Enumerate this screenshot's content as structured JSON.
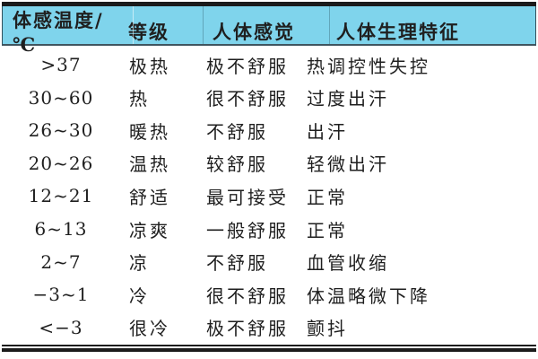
{
  "table": {
    "title_semantic": "apparent-temperature-grade-table",
    "colors": {
      "header_bg": "#7fd4ec",
      "rule": "#1b1b1b",
      "header_underline": "#40555f",
      "text": "#1f1f1f"
    },
    "columns": [
      {
        "label": "体感温度/℃"
      },
      {
        "label": "等级"
      },
      {
        "label": "人体感觉"
      },
      {
        "label": "人体生理特征"
      }
    ],
    "rows": [
      {
        "temp": ">37",
        "grade": "极热",
        "feeling": "极不舒服",
        "physiology": "热调控性失控"
      },
      {
        "temp": "30~60",
        "grade": "热",
        "feeling": "很不舒服",
        "physiology": "过度出汗"
      },
      {
        "temp": "26~30",
        "grade": "暖热",
        "feeling": "不舒服",
        "physiology": "出汗"
      },
      {
        "temp": "20~26",
        "grade": "温热",
        "feeling": "较舒服",
        "physiology": "轻微出汗"
      },
      {
        "temp": "12~21",
        "grade": "舒适",
        "feeling": "最可接受",
        "physiology": "正常"
      },
      {
        "temp": "6~13",
        "grade": "凉爽",
        "feeling": "一般舒服",
        "physiology": "正常"
      },
      {
        "temp": "2~7",
        "grade": "凉",
        "feeling": "不舒服",
        "physiology": "血管收缩"
      },
      {
        "temp": "−3~1",
        "grade": "冷",
        "feeling": "很不舒服",
        "physiology": "体温略微下降"
      },
      {
        "temp": "<−3",
        "grade": "很冷",
        "feeling": "极不舒服",
        "physiology": "颤抖"
      }
    ]
  }
}
